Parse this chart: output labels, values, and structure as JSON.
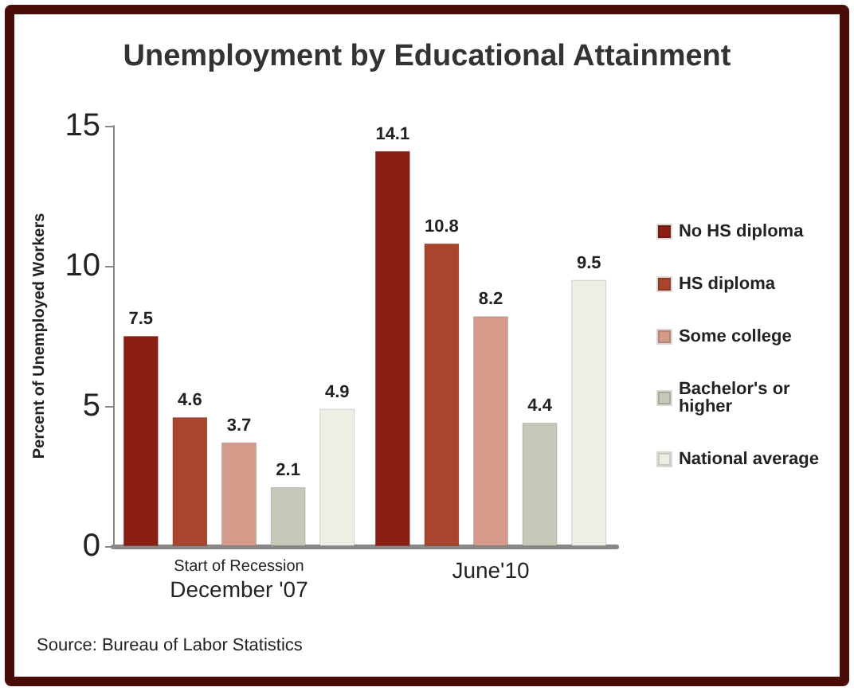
{
  "chart_data": {
    "type": "bar",
    "title": "Unemployment by Educational Attainment",
    "ylabel": "Percent of Unemployed Workers",
    "categories": [
      "Start of Recession\nDecember '07",
      "June'10"
    ],
    "series": [
      {
        "name": "No HS diploma",
        "color": "#8b1e12",
        "values": [
          7.5,
          14.1
        ]
      },
      {
        "name": "HS diploma",
        "color": "#a8452c",
        "values": [
          4.6,
          10.8
        ]
      },
      {
        "name": "Some college",
        "color": "#d49a8a",
        "values": [
          3.7,
          8.2
        ]
      },
      {
        "name": "Bachelor's or higher",
        "color": "#c6c8b8",
        "values": [
          2.1,
          4.4
        ]
      },
      {
        "name": "National average",
        "color": "#eeeee4",
        "values": [
          4.9,
          9.5
        ]
      }
    ],
    "ylim": [
      0,
      15
    ],
    "yticks": [
      0,
      5,
      10,
      15
    ],
    "grid": false,
    "legend": "right",
    "data_labels": true,
    "annotations": [
      "Source: Bureau of Labor Statistics"
    ]
  }
}
